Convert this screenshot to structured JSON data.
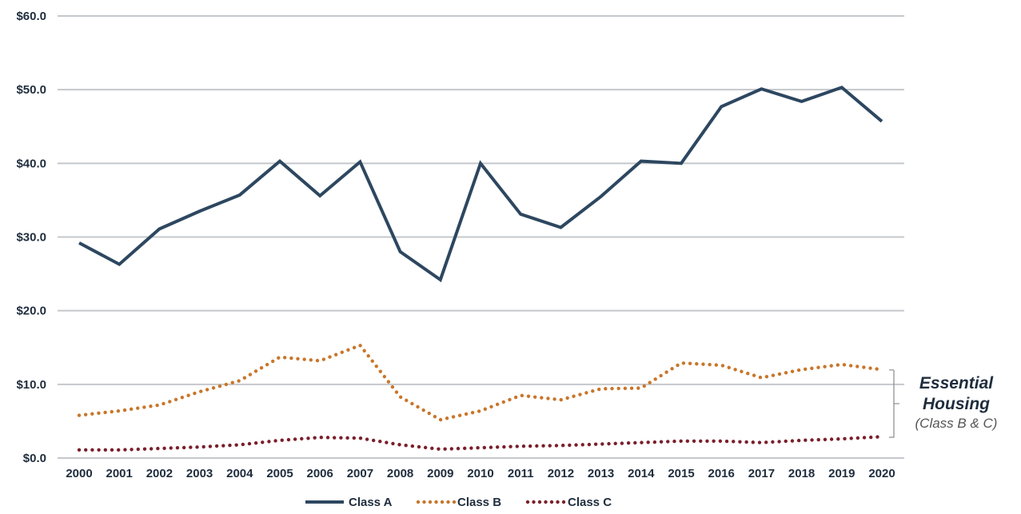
{
  "chart_data": {
    "type": "line",
    "categories": [
      "2000",
      "2001",
      "2002",
      "2003",
      "2004",
      "2005",
      "2006",
      "2007",
      "2008",
      "2009",
      "2010",
      "2011",
      "2012",
      "2013",
      "2014",
      "2015",
      "2016",
      "2017",
      "2018",
      "2019",
      "2020"
    ],
    "series": [
      {
        "name": "Class A",
        "style": "solid",
        "color": "#2d4760",
        "values": [
          29.2,
          26.3,
          31.1,
          33.5,
          35.7,
          40.3,
          35.6,
          40.2,
          28.0,
          24.2,
          40.0,
          33.1,
          31.3,
          35.5,
          40.3,
          40.0,
          47.7,
          50.1,
          48.4,
          50.3,
          45.7
        ]
      },
      {
        "name": "Class B",
        "style": "dotted",
        "color": "#c8762a",
        "values": [
          5.8,
          6.4,
          7.2,
          9.0,
          10.5,
          13.7,
          13.2,
          15.3,
          8.3,
          5.2,
          6.4,
          8.5,
          7.9,
          9.4,
          9.5,
          12.9,
          12.6,
          10.9,
          12.0,
          12.7,
          12.0
        ]
      },
      {
        "name": "Class C",
        "style": "dotted",
        "color": "#7a1f2b",
        "values": [
          1.1,
          1.1,
          1.3,
          1.5,
          1.8,
          2.4,
          2.8,
          2.7,
          1.8,
          1.2,
          1.4,
          1.6,
          1.7,
          1.9,
          2.1,
          2.3,
          2.3,
          2.1,
          2.4,
          2.6,
          2.9
        ]
      }
    ],
    "ylim": [
      0,
      60
    ],
    "yticks": [
      0,
      10,
      20,
      30,
      40,
      50,
      60
    ],
    "ytick_labels": [
      "$0.0",
      "$10.0",
      "$20.0",
      "$30.0",
      "$40.0",
      "$50.0",
      "$60.0"
    ],
    "grid": true,
    "legend_position": "bottom",
    "annotation": {
      "title_line1": "Essential",
      "title_line2": "Housing",
      "subtitle": "(Class B & C)",
      "range": [
        0,
        10
      ]
    }
  }
}
